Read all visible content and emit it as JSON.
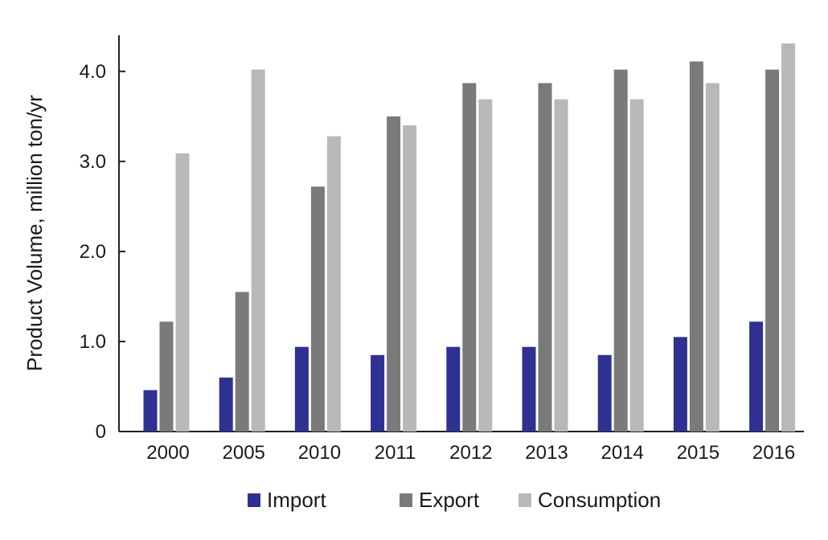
{
  "chart_data": {
    "type": "bar",
    "title": "",
    "xlabel": "",
    "ylabel": "Product Volume, million ton/yr",
    "ylim": [
      0,
      4.4
    ],
    "yticks": [
      {
        "value": 0,
        "label": "0"
      },
      {
        "value": 1,
        "label": "1.0"
      },
      {
        "value": 2,
        "label": "2.0"
      },
      {
        "value": 3,
        "label": "3.0"
      },
      {
        "value": 4,
        "label": "4.0"
      }
    ],
    "grid": false,
    "legend_position": "bottom",
    "categories": [
      "2000",
      "2005",
      "2010",
      "2011",
      "2012",
      "2013",
      "2014",
      "2015",
      "2016"
    ],
    "series": [
      {
        "name": "Import",
        "color": "#2e3192",
        "values": [
          0.46,
          0.6,
          0.94,
          0.85,
          0.94,
          0.94,
          0.85,
          1.05,
          1.22
        ]
      },
      {
        "name": "Export",
        "color": "#7a7a7a",
        "values": [
          1.22,
          1.55,
          2.72,
          3.5,
          3.87,
          3.87,
          4.02,
          4.11,
          4.02
        ]
      },
      {
        "name": "Consumption",
        "color": "#b8b8b8",
        "values": [
          3.09,
          4.02,
          3.28,
          3.4,
          3.69,
          3.69,
          3.69,
          3.87,
          4.31
        ]
      }
    ]
  }
}
